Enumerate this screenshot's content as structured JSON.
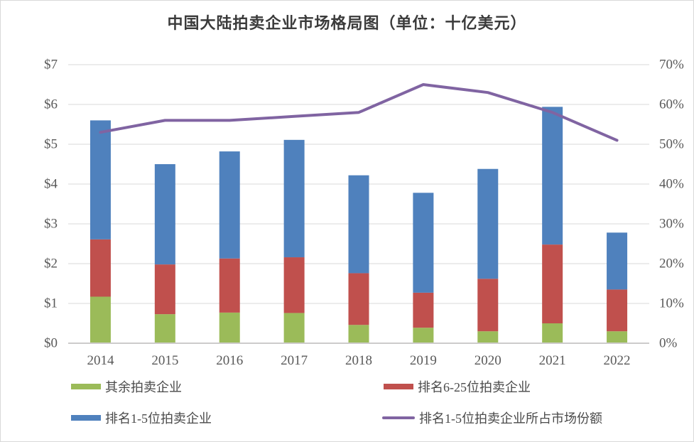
{
  "chart": {
    "title": "中国大陆拍卖企业市场格局图（单位：十亿美元）"
  },
  "chart_data": {
    "type": "bar",
    "subtype": "stacked-bars-with-line",
    "title": "中国大陆拍卖企业市场格局图（单位：十亿美元）",
    "categories": [
      "2014",
      "2015",
      "2016",
      "2017",
      "2018",
      "2019",
      "2020",
      "2021",
      "2022"
    ],
    "series": [
      {
        "name": "其余拍卖企业",
        "type": "bar",
        "color": "#9bbb59",
        "axis": "left",
        "values": [
          1.17,
          0.73,
          0.77,
          0.76,
          0.46,
          0.39,
          0.3,
          0.5,
          0.3
        ]
      },
      {
        "name": "排名6-25位拍卖企业",
        "type": "bar",
        "color": "#c0504d",
        "axis": "left",
        "values": [
          1.44,
          1.25,
          1.36,
          1.4,
          1.3,
          0.88,
          1.32,
          1.98,
          1.05
        ]
      },
      {
        "name": "排名1-5位拍卖企业",
        "type": "bar",
        "color": "#4f81bd",
        "axis": "left",
        "values": [
          2.99,
          2.52,
          2.69,
          2.95,
          2.46,
          2.51,
          2.76,
          3.46,
          1.43
        ]
      },
      {
        "name": "排名1-5位拍卖企业所占市场份额",
        "type": "line",
        "color": "#8064a2",
        "axis": "right",
        "values": [
          53,
          56,
          56,
          57,
          58,
          65,
          63,
          58,
          51
        ]
      }
    ],
    "bar_totals": [
      5.6,
      4.5,
      4.82,
      5.11,
      4.22,
      3.78,
      4.38,
      5.94,
      2.78
    ],
    "axes": {
      "left": {
        "min": 0,
        "max": 7,
        "step": 1,
        "labels": [
          "$0",
          "$1",
          "$2",
          "$3",
          "$4",
          "$5",
          "$6",
          "$7"
        ]
      },
      "right": {
        "min": 0,
        "max": 70,
        "step": 10,
        "labels": [
          "0%",
          "10%",
          "20%",
          "30%",
          "40%",
          "50%",
          "60%",
          "70%"
        ]
      }
    },
    "grid": true,
    "legend_position": "bottom"
  }
}
